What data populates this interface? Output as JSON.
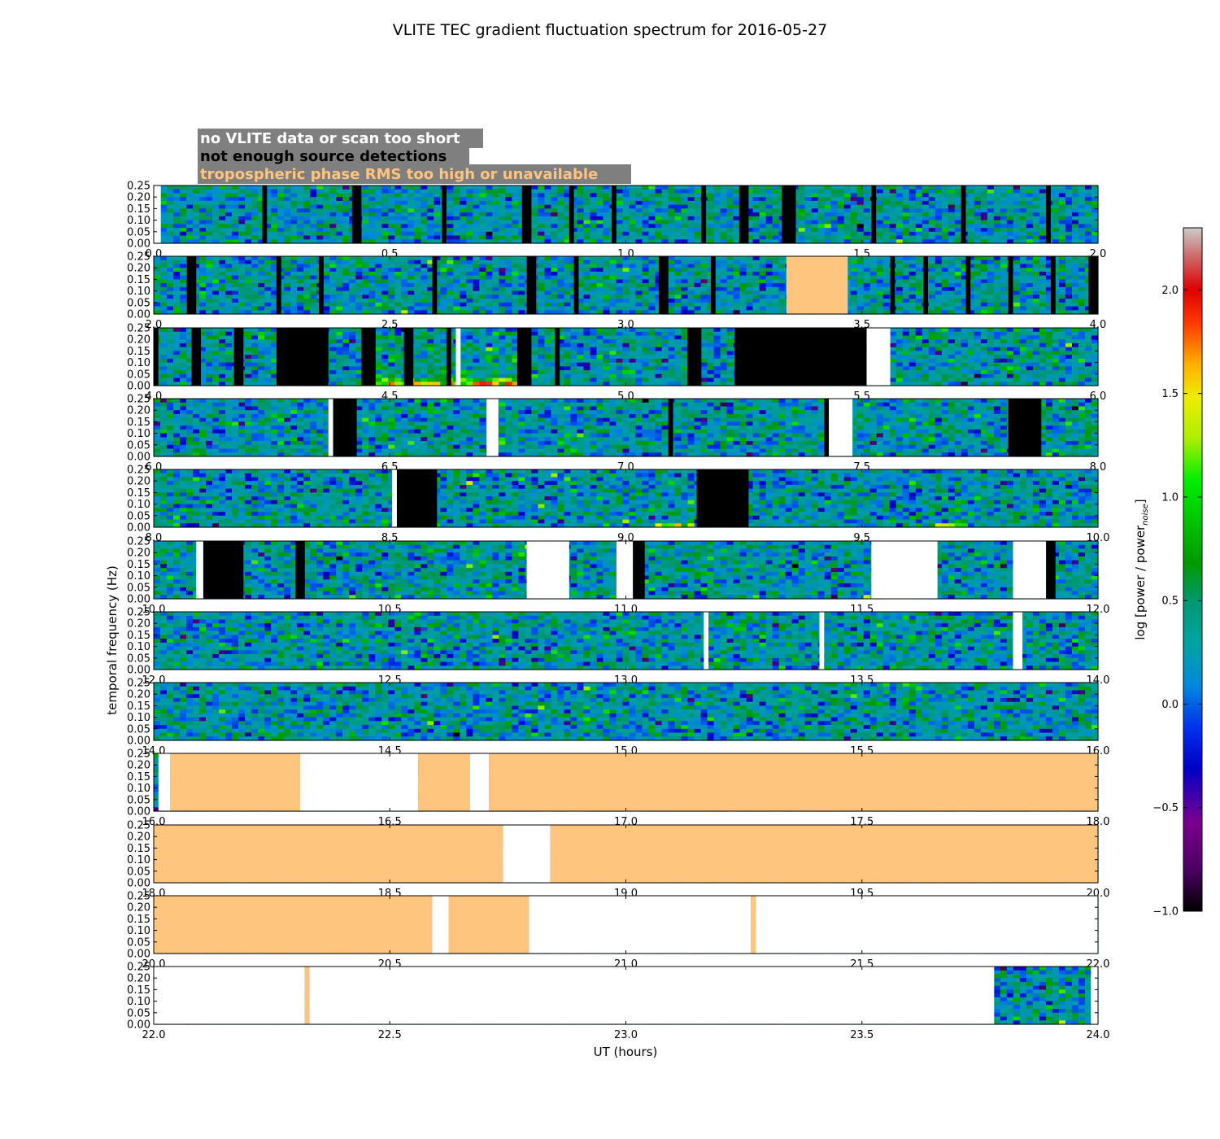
{
  "chart_data": {
    "type": "heatmap",
    "title": "VLITE TEC gradient fluctuation spectrum for 2016-05-27",
    "xlabel": "UT (hours)",
    "ylabel": "temporal frequency (Hz)",
    "ylim": [
      0,
      0.25
    ],
    "y_ticks": [
      "0.00",
      "0.05",
      "0.10",
      "0.15",
      "0.20",
      "0.25"
    ],
    "colorbar": {
      "label": "log [power / power",
      "label_subscript": "noise",
      "label_close": "]",
      "range": [
        -1.0,
        2.3
      ],
      "ticks": [
        "−1.0",
        "−0.5",
        "0.0",
        "0.5",
        "1.0",
        "1.5",
        "2.0"
      ],
      "tick_values": [
        -1.0,
        -0.5,
        0.0,
        0.5,
        1.0,
        1.5,
        2.0
      ]
    },
    "legend": [
      {
        "label": "no VLITE data or scan too short",
        "text_color": "#ffffff"
      },
      {
        "label": "not enough source detections",
        "text_color": "#000000"
      },
      {
        "label": "tropospheric phase RMS too high or unavailable",
        "text_color": "#ffc47e"
      }
    ],
    "category_colors": {
      "nodata": "#ffffff",
      "nodetect": "#000000",
      "tropo": "#ffc47e",
      "legend_box": "#7f7f7f"
    },
    "rows": [
      {
        "range": [
          0,
          2
        ],
        "ticks": [
          "0.0",
          "0.5",
          "1.0",
          "1.5",
          "2.0"
        ],
        "segments": [
          {
            "s": 0.0,
            "e": 0.015,
            "k": "nodata"
          },
          {
            "s": 0.23,
            "e": 0.24,
            "k": "nodetect"
          },
          {
            "s": 0.42,
            "e": 0.44,
            "k": "nodetect"
          },
          {
            "s": 0.61,
            "e": 0.62,
            "k": "nodetect"
          },
          {
            "s": 0.78,
            "e": 0.8,
            "k": "nodetect"
          },
          {
            "s": 0.88,
            "e": 0.89,
            "k": "nodetect"
          },
          {
            "s": 0.97,
            "e": 0.98,
            "k": "nodetect"
          },
          {
            "s": 1.16,
            "e": 1.17,
            "k": "nodetect"
          },
          {
            "s": 1.24,
            "e": 1.26,
            "k": "nodetect"
          },
          {
            "s": 1.33,
            "e": 1.36,
            "k": "nodetect"
          },
          {
            "s": 1.52,
            "e": 1.53,
            "k": "nodetect"
          },
          {
            "s": 1.71,
            "e": 1.72,
            "k": "nodetect"
          },
          {
            "s": 1.89,
            "e": 1.9,
            "k": "nodetect"
          }
        ]
      },
      {
        "range": [
          2,
          4
        ],
        "ticks": [
          "2.0",
          "2.5",
          "3.0",
          "3.5",
          "4.0"
        ],
        "segments": [
          {
            "s": 2.07,
            "e": 2.09,
            "k": "nodetect"
          },
          {
            "s": 2.26,
            "e": 2.27,
            "k": "nodetect"
          },
          {
            "s": 2.35,
            "e": 2.36,
            "k": "nodetect"
          },
          {
            "s": 2.59,
            "e": 2.6,
            "k": "nodetect"
          },
          {
            "s": 2.79,
            "e": 2.81,
            "k": "nodetect"
          },
          {
            "s": 2.89,
            "e": 2.9,
            "k": "nodetect"
          },
          {
            "s": 3.07,
            "e": 3.09,
            "k": "nodetect"
          },
          {
            "s": 3.18,
            "e": 3.19,
            "k": "nodetect"
          },
          {
            "s": 3.34,
            "e": 3.47,
            "k": "tropo"
          },
          {
            "s": 3.56,
            "e": 3.57,
            "k": "nodetect"
          },
          {
            "s": 3.63,
            "e": 3.64,
            "k": "nodetect"
          },
          {
            "s": 3.72,
            "e": 3.73,
            "k": "nodetect"
          },
          {
            "s": 3.81,
            "e": 3.82,
            "k": "nodetect"
          },
          {
            "s": 3.9,
            "e": 3.91,
            "k": "nodetect"
          },
          {
            "s": 3.98,
            "e": 4.0,
            "k": "nodetect"
          }
        ]
      },
      {
        "range": [
          4,
          6
        ],
        "ticks": [
          "4.0",
          "4.5",
          "5.0",
          "5.5",
          "6.0"
        ],
        "segments": [
          {
            "s": 4.0,
            "e": 4.01,
            "k": "nodetect"
          },
          {
            "s": 4.08,
            "e": 4.1,
            "k": "nodetect"
          },
          {
            "s": 4.17,
            "e": 4.19,
            "k": "nodetect"
          },
          {
            "s": 4.26,
            "e": 4.37,
            "k": "nodetect"
          },
          {
            "s": 4.44,
            "e": 4.47,
            "k": "nodetect"
          },
          {
            "s": 4.53,
            "e": 4.55,
            "k": "nodetect"
          },
          {
            "s": 4.62,
            "e": 4.63,
            "k": "nodetect"
          },
          {
            "s": 4.64,
            "e": 4.65,
            "k": "nodata"
          },
          {
            "s": 4.77,
            "e": 4.8,
            "k": "nodetect"
          },
          {
            "s": 4.85,
            "e": 4.86,
            "k": "nodetect"
          },
          {
            "s": 5.13,
            "e": 5.16,
            "k": "nodetect"
          },
          {
            "s": 5.23,
            "e": 5.51,
            "k": "nodetect"
          },
          {
            "s": 5.51,
            "e": 5.56,
            "k": "nodata"
          }
        ]
      },
      {
        "range": [
          6,
          8
        ],
        "ticks": [
          "6.0",
          "6.5",
          "7.0",
          "7.5",
          "8.0"
        ],
        "segments": [
          {
            "s": 6.37,
            "e": 6.38,
            "k": "nodata"
          },
          {
            "s": 6.38,
            "e": 6.43,
            "k": "nodetect"
          },
          {
            "s": 6.705,
            "e": 6.73,
            "k": "nodata"
          },
          {
            "s": 7.09,
            "e": 7.1,
            "k": "nodetect"
          },
          {
            "s": 7.42,
            "e": 7.43,
            "k": "nodetect"
          },
          {
            "s": 7.43,
            "e": 7.48,
            "k": "nodata"
          },
          {
            "s": 7.81,
            "e": 7.88,
            "k": "nodetect"
          }
        ]
      },
      {
        "range": [
          8,
          10
        ],
        "ticks": [
          "8.0",
          "8.5",
          "9.0",
          "9.5",
          "10.0"
        ],
        "segments": [
          {
            "s": 8.505,
            "e": 8.515,
            "k": "nodata"
          },
          {
            "s": 8.515,
            "e": 8.6,
            "k": "nodetect"
          },
          {
            "s": 9.15,
            "e": 9.26,
            "k": "nodetect"
          }
        ]
      },
      {
        "range": [
          10,
          12
        ],
        "ticks": [
          "10.0",
          "10.5",
          "11.0",
          "11.5",
          "12.0"
        ],
        "segments": [
          {
            "s": 10.09,
            "e": 10.105,
            "k": "nodata"
          },
          {
            "s": 10.105,
            "e": 10.19,
            "k": "nodetect"
          },
          {
            "s": 10.3,
            "e": 10.32,
            "k": "nodetect"
          },
          {
            "s": 10.79,
            "e": 10.88,
            "k": "nodata"
          },
          {
            "s": 10.98,
            "e": 11.015,
            "k": "nodata"
          },
          {
            "s": 11.015,
            "e": 11.04,
            "k": "nodetect"
          },
          {
            "s": 11.52,
            "e": 11.66,
            "k": "nodata"
          },
          {
            "s": 11.82,
            "e": 11.89,
            "k": "nodata"
          },
          {
            "s": 11.89,
            "e": 11.91,
            "k": "nodetect"
          }
        ]
      },
      {
        "range": [
          12,
          14
        ],
        "ticks": [
          "12.0",
          "12.5",
          "13.0",
          "13.5",
          "14.0"
        ],
        "segments": [
          {
            "s": 13.165,
            "e": 13.175,
            "k": "nodata"
          },
          {
            "s": 13.41,
            "e": 13.42,
            "k": "nodata"
          },
          {
            "s": 13.82,
            "e": 13.84,
            "k": "nodata"
          }
        ]
      },
      {
        "range": [
          14,
          16
        ],
        "ticks": [
          "14.0",
          "14.5",
          "15.0",
          "15.5",
          "16.0"
        ],
        "segments": []
      },
      {
        "range": [
          16,
          18
        ],
        "ticks": [
          "16.0",
          "16.5",
          "17.0",
          "17.5",
          "18.0"
        ],
        "segments": [
          {
            "s": 16.01,
            "e": 16.035,
            "k": "nodata"
          },
          {
            "s": 16.035,
            "e": 16.31,
            "k": "tropo"
          },
          {
            "s": 16.31,
            "e": 16.56,
            "k": "nodata"
          },
          {
            "s": 16.56,
            "e": 16.67,
            "k": "tropo"
          },
          {
            "s": 16.67,
            "e": 16.71,
            "k": "nodata"
          },
          {
            "s": 16.71,
            "e": 18.0,
            "k": "tropo"
          }
        ]
      },
      {
        "range": [
          18,
          20
        ],
        "ticks": [
          "18.0",
          "18.5",
          "19.0",
          "19.5",
          "20.0"
        ],
        "segments": [
          {
            "s": 18.0,
            "e": 18.74,
            "k": "tropo"
          },
          {
            "s": 18.74,
            "e": 18.84,
            "k": "nodata"
          },
          {
            "s": 18.84,
            "e": 20.0,
            "k": "tropo"
          }
        ]
      },
      {
        "range": [
          20,
          22
        ],
        "ticks": [
          "20.0",
          "20.5",
          "21.0",
          "21.5",
          "22.0"
        ],
        "segments": [
          {
            "s": 20.0,
            "e": 20.59,
            "k": "tropo"
          },
          {
            "s": 20.59,
            "e": 20.625,
            "k": "nodata"
          },
          {
            "s": 20.625,
            "e": 20.795,
            "k": "tropo"
          },
          {
            "s": 20.795,
            "e": 21.265,
            "k": "nodata"
          },
          {
            "s": 21.265,
            "e": 21.275,
            "k": "tropo"
          },
          {
            "s": 21.275,
            "e": 22.0,
            "k": "nodata"
          }
        ]
      },
      {
        "range": [
          22,
          24
        ],
        "ticks": [
          "22.0",
          "22.5",
          "23.0",
          "23.5",
          "24.0"
        ],
        "segments": [
          {
            "s": 22.0,
            "e": 22.32,
            "k": "nodata"
          },
          {
            "s": 22.32,
            "e": 22.33,
            "k": "tropo"
          },
          {
            "s": 22.33,
            "e": 23.78,
            "k": "nodata"
          },
          {
            "s": 23.985,
            "e": 24.0,
            "k": "nodata"
          }
        ]
      }
    ]
  }
}
